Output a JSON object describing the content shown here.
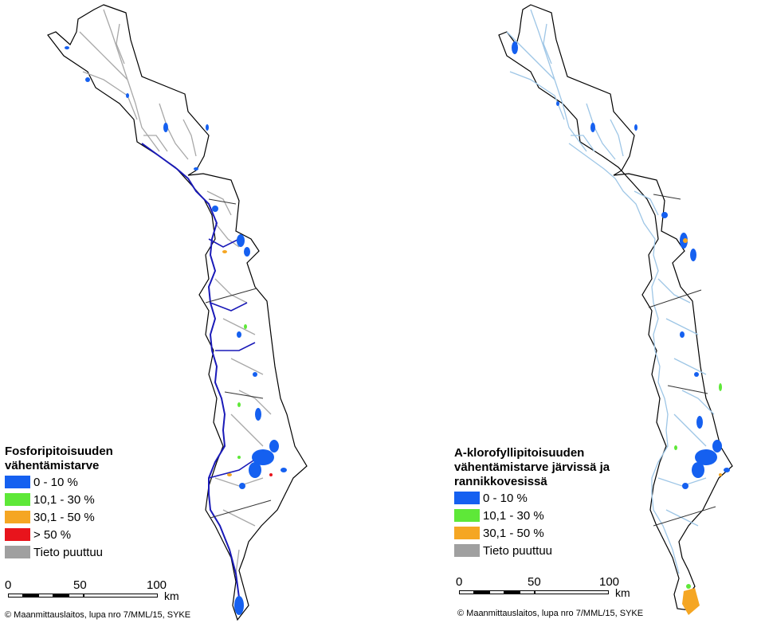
{
  "colors": {
    "class_0_10": "#1560f0",
    "class_10_30": "#5ee838",
    "class_30_50": "#f5a623",
    "class_over_50": "#e8141c",
    "no_data": "#a0a0a0",
    "river_left": "#a8a8a8",
    "river_right": "#9ec6e6",
    "main_river_left": "#1a1ab8",
    "boundary": "#000000"
  },
  "left_map": {
    "legend": {
      "title": "Fosforipitoisuuden\nvähentämistarve",
      "items": [
        {
          "label": "0 - 10 %",
          "color": "#1560f0"
        },
        {
          "label": "10,1 - 30 %",
          "color": "#5ee838"
        },
        {
          "label": "30,1 - 50 %",
          "color": "#f5a623"
        },
        {
          "label": "> 50 %",
          "color": "#e8141c"
        },
        {
          "label": "Tieto puuttuu",
          "color": "#a0a0a0"
        }
      ]
    },
    "scale": {
      "ticks": [
        "0",
        "50",
        "100"
      ],
      "unit": "km"
    },
    "copyright": "© Maanmittauslaitos, lupa nro 7/MML/15, SYKE"
  },
  "right_map": {
    "legend": {
      "title": "A-klorofyllipitoisuuden\nvähentämistarve järvissä ja\nrannikkovesissä",
      "items": [
        {
          "label": "0 - 10 %",
          "color": "#1560f0"
        },
        {
          "label": "10,1 - 30 %",
          "color": "#5ee838"
        },
        {
          "label": "30,1 - 50 %",
          "color": "#f5a623"
        },
        {
          "label": "Tieto puuttuu",
          "color": "#a0a0a0"
        }
      ]
    },
    "scale": {
      "ticks": [
        "0",
        "50",
        "100"
      ],
      "unit": "km"
    },
    "copyright": "© Maanmittauslaitos, lupa nro 7/MML/15, SYKE"
  }
}
